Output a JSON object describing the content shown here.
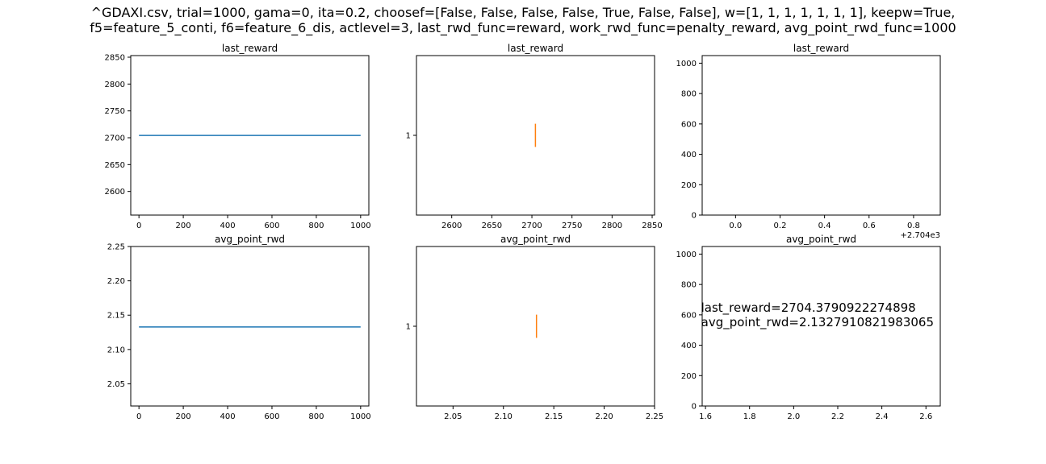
{
  "suptitle": {
    "line1": "^GDAXI.csv, trial=1000, gama=0, ita=0.2, choosef=[False, False, False, False, True, False, False], w=[1, 1, 1, 1, 1, 1, 1], keepw=True,",
    "line2": "f5=feature_5_conti, f6=feature_6_dis, actlevel=3, last_rwd_func=reward, work_rwd_func=penalty_reward, avg_point_rwd_func=1000"
  },
  "colors": {
    "blue": "#1f77b4",
    "orange": "#ff7f0e",
    "axis": "#000000",
    "background": "#ffffff"
  },
  "chart_data": [
    {
      "type": "line",
      "title": "last_reward",
      "xlim": [
        -37,
        1037
      ],
      "ylim": [
        2556,
        2853
      ],
      "xticks": [
        0,
        200,
        400,
        600,
        800,
        1000
      ],
      "xticklabels": [
        "0",
        "200",
        "400",
        "600",
        "800",
        "1000"
      ],
      "yticks": [
        2600,
        2650,
        2700,
        2750,
        2800,
        2850
      ],
      "yticklabels": [
        "2600",
        "2650",
        "2700",
        "2750",
        "2800",
        "2850"
      ],
      "series": [
        {
          "color": "#1f77b4",
          "x": [
            0,
            1000
          ],
          "y": [
            2704.38,
            2704.38
          ]
        }
      ]
    },
    {
      "type": "line",
      "title": "last_reward",
      "xlim": [
        2556,
        2853
      ],
      "ylim": [
        0.45,
        1.55
      ],
      "xticks": [
        2600,
        2650,
        2700,
        2750,
        2800,
        2850
      ],
      "xticklabels": [
        "2600",
        "2650",
        "2700",
        "2750",
        "2800",
        "2850"
      ],
      "yticks": [
        1
      ],
      "yticklabels": [
        "1"
      ],
      "series": [
        {
          "color": "#ff7f0e",
          "x": [
            2704.38,
            2704.38
          ],
          "y": [
            0.92,
            1.08
          ]
        }
      ]
    },
    {
      "type": "scatter",
      "title": "last_reward",
      "xlim": [
        2703.85,
        2704.92
      ],
      "ylim": [
        0,
        1050
      ],
      "xticks": [
        2704.0,
        2704.2,
        2704.4,
        2704.6,
        2704.8
      ],
      "xticklabels": [
        "0.0",
        "0.2",
        "0.4",
        "0.6",
        "0.8"
      ],
      "yticks": [
        0,
        200,
        400,
        600,
        800,
        1000
      ],
      "yticklabels": [
        "0",
        "200",
        "400",
        "600",
        "800",
        "1000"
      ],
      "offset_text": "+2.704e3",
      "series": []
    },
    {
      "type": "line",
      "title": "avg_point_rwd",
      "xlim": [
        -37,
        1037
      ],
      "ylim": [
        2.0177,
        2.25
      ],
      "xticks": [
        0,
        200,
        400,
        600,
        800,
        1000
      ],
      "xticklabels": [
        "0",
        "200",
        "400",
        "600",
        "800",
        "1000"
      ],
      "yticks": [
        2.05,
        2.1,
        2.15,
        2.2,
        2.25
      ],
      "yticklabels": [
        "2.05",
        "2.10",
        "2.15",
        "2.20",
        "2.25"
      ],
      "series": [
        {
          "color": "#1f77b4",
          "x": [
            0,
            1000
          ],
          "y": [
            2.1328,
            2.1328
          ]
        }
      ]
    },
    {
      "type": "line",
      "title": "avg_point_rwd",
      "xlim": [
        2.0137,
        2.25
      ],
      "ylim": [
        0.45,
        1.55
      ],
      "xticks": [
        2.05,
        2.1,
        2.15,
        2.2,
        2.25
      ],
      "xticklabels": [
        "2.05",
        "2.10",
        "2.15",
        "2.20",
        "2.25"
      ],
      "yticks": [
        1
      ],
      "yticklabels": [
        "1"
      ],
      "series": [
        {
          "color": "#ff7f0e",
          "x": [
            2.1328,
            2.1328
          ],
          "y": [
            0.92,
            1.08
          ]
        }
      ]
    },
    {
      "type": "scatter",
      "title": "avg_point_rwd",
      "xlim": [
        1.585,
        2.665
      ],
      "ylim": [
        0,
        1050
      ],
      "xticks": [
        1.6,
        1.8,
        2.0,
        2.2,
        2.4,
        2.6
      ],
      "xticklabels": [
        "1.6",
        "1.8",
        "2.0",
        "2.2",
        "2.4",
        "2.6"
      ],
      "yticks": [
        0,
        200,
        400,
        600,
        800,
        1000
      ],
      "yticklabels": [
        "0",
        "200",
        "400",
        "600",
        "800",
        "1000"
      ],
      "annotation": {
        "lines": [
          "last_reward=2704.3790922274898",
          "avg_point_rwd=2.1327910821983065"
        ],
        "x": 1.58,
        "y": 620
      },
      "series": []
    }
  ]
}
